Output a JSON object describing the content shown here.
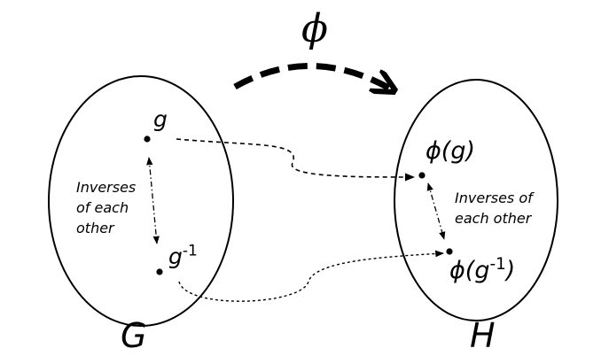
{
  "map_symbol": "ϕ",
  "domain_set": {
    "label": "G",
    "element": "g",
    "inverse_element_base": "g",
    "inverse_exponent": "-1",
    "note_lines": [
      "Inverses",
      "of each",
      "other"
    ]
  },
  "codomain_set": {
    "label": "H",
    "image_element": "ϕ(g)",
    "image_inverse_prefix": "ϕ(g",
    "image_inverse_exponent": "-1",
    "image_inverse_suffix": ")",
    "note_lines": [
      "Inverses of",
      "each other"
    ]
  },
  "colors": {
    "stroke": "#000000",
    "background": "#ffffff"
  }
}
